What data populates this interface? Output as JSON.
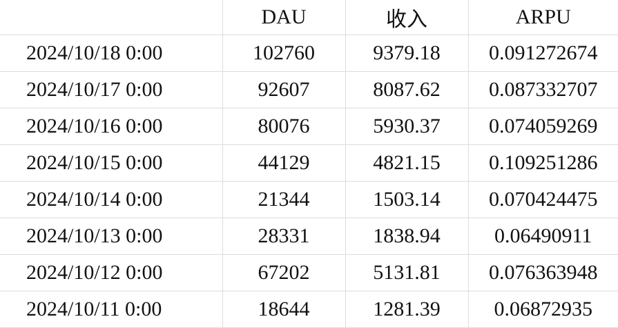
{
  "table": {
    "headers": [
      "",
      "DAU",
      "收入",
      "ARPU"
    ],
    "rows": [
      [
        "2024/10/18 0:00",
        "102760",
        "9379.18",
        "0.091272674"
      ],
      [
        "2024/10/17 0:00",
        "92607",
        "8087.62",
        "0.087332707"
      ],
      [
        "2024/10/16 0:00",
        "80076",
        "5930.37",
        "0.074059269"
      ],
      [
        "2024/10/15 0:00",
        "44129",
        "4821.15",
        "0.109251286"
      ],
      [
        "2024/10/14 0:00",
        "21344",
        "1503.14",
        "0.070424475"
      ],
      [
        "2024/10/13 0:00",
        "28331",
        "1838.94",
        "0.06490911"
      ],
      [
        "2024/10/12 0:00",
        "67202",
        "5131.81",
        "0.076363948"
      ],
      [
        "2024/10/11 0:00",
        "18644",
        "1281.39",
        "0.06872935"
      ]
    ]
  }
}
